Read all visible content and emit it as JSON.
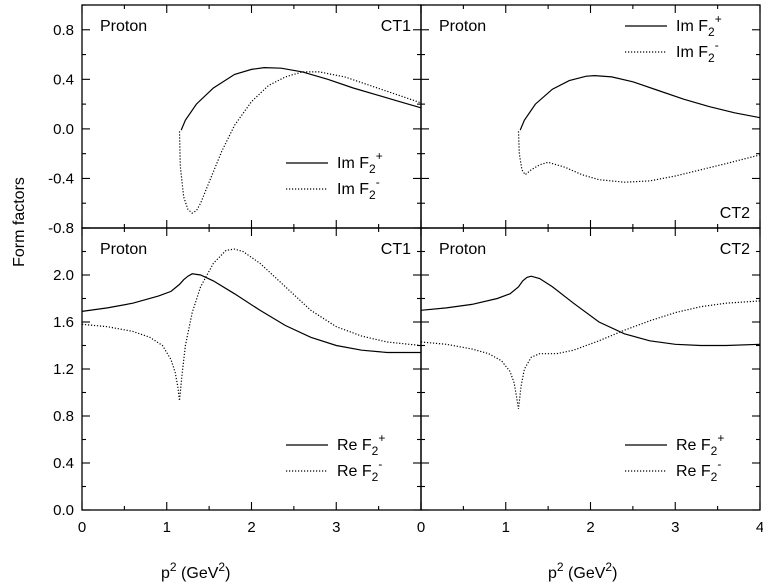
{
  "ylabel": "Form factors",
  "xlabel_parts": {
    "base": "p",
    "exp": "2",
    "unit_open": " (GeV",
    "unit_exp": "2",
    "unit_close": ")"
  },
  "chart_data": [
    {
      "id": "top-left",
      "type": "line",
      "label_left": "Proton",
      "label_right": "CT1",
      "xlim": [
        0,
        4
      ],
      "ylim": [
        -0.8,
        1.0
      ],
      "yticks": [
        "0.8",
        "0.4",
        "0.0",
        "-0.4",
        "-0.8"
      ],
      "ytick_values": [
        0.8,
        0.4,
        0.0,
        -0.4,
        -0.8
      ],
      "legend": [
        {
          "prefix": "Im F",
          "sub": "2",
          "sup": "+",
          "style": "solid"
        },
        {
          "prefix": "Im F",
          "sub": "2",
          "sup": "-",
          "style": "dotted"
        }
      ],
      "series": [
        {
          "style": "solid",
          "x": [
            1.17,
            1.22,
            1.35,
            1.55,
            1.8,
            2.0,
            2.15,
            2.35,
            2.6,
            2.9,
            3.2,
            3.5,
            3.8,
            4.0
          ],
          "y": [
            -0.01,
            0.07,
            0.2,
            0.33,
            0.44,
            0.48,
            0.495,
            0.49,
            0.46,
            0.4,
            0.33,
            0.27,
            0.21,
            0.17
          ]
        },
        {
          "style": "dotted",
          "x": [
            1.15,
            1.16,
            1.2,
            1.25,
            1.3,
            1.35,
            1.4,
            1.5,
            1.65,
            1.8,
            2.0,
            2.2,
            2.4,
            2.6,
            2.8,
            3.1,
            3.4,
            3.7,
            4.0
          ],
          "y": [
            -0.02,
            -0.3,
            -0.55,
            -0.65,
            -0.68,
            -0.66,
            -0.6,
            -0.43,
            -0.18,
            0.03,
            0.22,
            0.35,
            0.42,
            0.46,
            0.46,
            0.42,
            0.35,
            0.28,
            0.21
          ]
        }
      ]
    },
    {
      "id": "top-right",
      "type": "line",
      "label_left": "Proton",
      "label_right": "CT2",
      "xlim": [
        0,
        4
      ],
      "ylim": [
        -0.8,
        1.0
      ],
      "legend": [
        {
          "prefix": "Im F",
          "sub": "2",
          "sup": "+",
          "style": "solid"
        },
        {
          "prefix": "Im F",
          "sub": "2",
          "sup": "-",
          "style": "dotted"
        }
      ],
      "series": [
        {
          "style": "solid",
          "x": [
            1.17,
            1.22,
            1.35,
            1.55,
            1.75,
            1.95,
            2.05,
            2.25,
            2.5,
            2.8,
            3.1,
            3.4,
            3.7,
            4.0
          ],
          "y": [
            -0.01,
            0.07,
            0.2,
            0.32,
            0.39,
            0.425,
            0.43,
            0.42,
            0.38,
            0.31,
            0.24,
            0.18,
            0.13,
            0.09
          ]
        },
        {
          "style": "dotted",
          "x": [
            1.15,
            1.16,
            1.19,
            1.23,
            1.3,
            1.4,
            1.5,
            1.7,
            1.9,
            2.1,
            2.4,
            2.7,
            3.0,
            3.3,
            3.6,
            4.0
          ],
          "y": [
            -0.02,
            -0.2,
            -0.33,
            -0.37,
            -0.33,
            -0.29,
            -0.27,
            -0.31,
            -0.37,
            -0.41,
            -0.43,
            -0.42,
            -0.38,
            -0.33,
            -0.28,
            -0.21
          ]
        }
      ]
    },
    {
      "id": "bottom-left",
      "type": "line",
      "label_left": "Proton",
      "label_right": "CT1",
      "xlim": [
        0,
        4
      ],
      "ylim": [
        0.0,
        2.4
      ],
      "yticks": [
        "2.0",
        "1.6",
        "1.2",
        "0.8",
        "0.4",
        "0.0"
      ],
      "ytick_values": [
        2.0,
        1.6,
        1.2,
        0.8,
        0.4,
        0.0
      ],
      "xticks": [
        "0",
        "1",
        "2",
        "3",
        ""
      ],
      "legend": [
        {
          "prefix": "Re F",
          "sub": "2",
          "sup": "+",
          "style": "solid"
        },
        {
          "prefix": "Re F",
          "sub": "2",
          "sup": "-",
          "style": "dotted"
        }
      ],
      "series": [
        {
          "style": "solid",
          "x": [
            0.0,
            0.3,
            0.6,
            0.9,
            1.05,
            1.15,
            1.2,
            1.25,
            1.3,
            1.4,
            1.55,
            1.8,
            2.1,
            2.4,
            2.7,
            3.0,
            3.3,
            3.6,
            4.0
          ],
          "y": [
            1.69,
            1.72,
            1.76,
            1.82,
            1.86,
            1.92,
            1.96,
            1.99,
            2.01,
            2.0,
            1.95,
            1.84,
            1.7,
            1.57,
            1.47,
            1.4,
            1.36,
            1.34,
            1.34
          ]
        },
        {
          "style": "dotted",
          "x": [
            0.0,
            0.3,
            0.6,
            0.8,
            0.95,
            1.05,
            1.1,
            1.13,
            1.15,
            1.18,
            1.22,
            1.3,
            1.4,
            1.55,
            1.7,
            1.8,
            1.9,
            2.1,
            2.4,
            2.7,
            3.0,
            3.3,
            3.6,
            4.0
          ],
          "y": [
            1.58,
            1.56,
            1.52,
            1.47,
            1.4,
            1.28,
            1.17,
            1.05,
            0.93,
            1.15,
            1.4,
            1.68,
            1.9,
            2.1,
            2.21,
            2.22,
            2.2,
            2.1,
            1.9,
            1.7,
            1.56,
            1.48,
            1.43,
            1.4
          ]
        }
      ]
    },
    {
      "id": "bottom-right",
      "type": "line",
      "label_left": "Proton",
      "label_right": "CT2",
      "xlim": [
        0,
        4
      ],
      "ylim": [
        0.0,
        2.4
      ],
      "xticks": [
        "0",
        "1",
        "2",
        "3",
        "4"
      ],
      "legend": [
        {
          "prefix": "Re F",
          "sub": "2",
          "sup": "+",
          "style": "solid"
        },
        {
          "prefix": "Re F",
          "sub": "2",
          "sup": "-",
          "style": "dotted"
        }
      ],
      "series": [
        {
          "style": "solid",
          "x": [
            0.0,
            0.3,
            0.6,
            0.9,
            1.05,
            1.15,
            1.2,
            1.25,
            1.3,
            1.4,
            1.55,
            1.8,
            2.1,
            2.4,
            2.7,
            3.0,
            3.3,
            3.6,
            4.0
          ],
          "y": [
            1.7,
            1.72,
            1.75,
            1.8,
            1.84,
            1.9,
            1.95,
            1.98,
            1.99,
            1.97,
            1.9,
            1.76,
            1.6,
            1.5,
            1.44,
            1.41,
            1.4,
            1.4,
            1.41
          ]
        },
        {
          "style": "dotted",
          "x": [
            0.0,
            0.3,
            0.6,
            0.8,
            0.95,
            1.05,
            1.1,
            1.13,
            1.15,
            1.18,
            1.22,
            1.3,
            1.4,
            1.6,
            1.8,
            2.1,
            2.4,
            2.7,
            3.0,
            3.3,
            3.6,
            4.0
          ],
          "y": [
            1.43,
            1.41,
            1.37,
            1.33,
            1.27,
            1.18,
            1.08,
            0.95,
            0.86,
            1.05,
            1.2,
            1.3,
            1.33,
            1.33,
            1.36,
            1.44,
            1.53,
            1.61,
            1.68,
            1.73,
            1.76,
            1.78
          ]
        }
      ]
    }
  ]
}
